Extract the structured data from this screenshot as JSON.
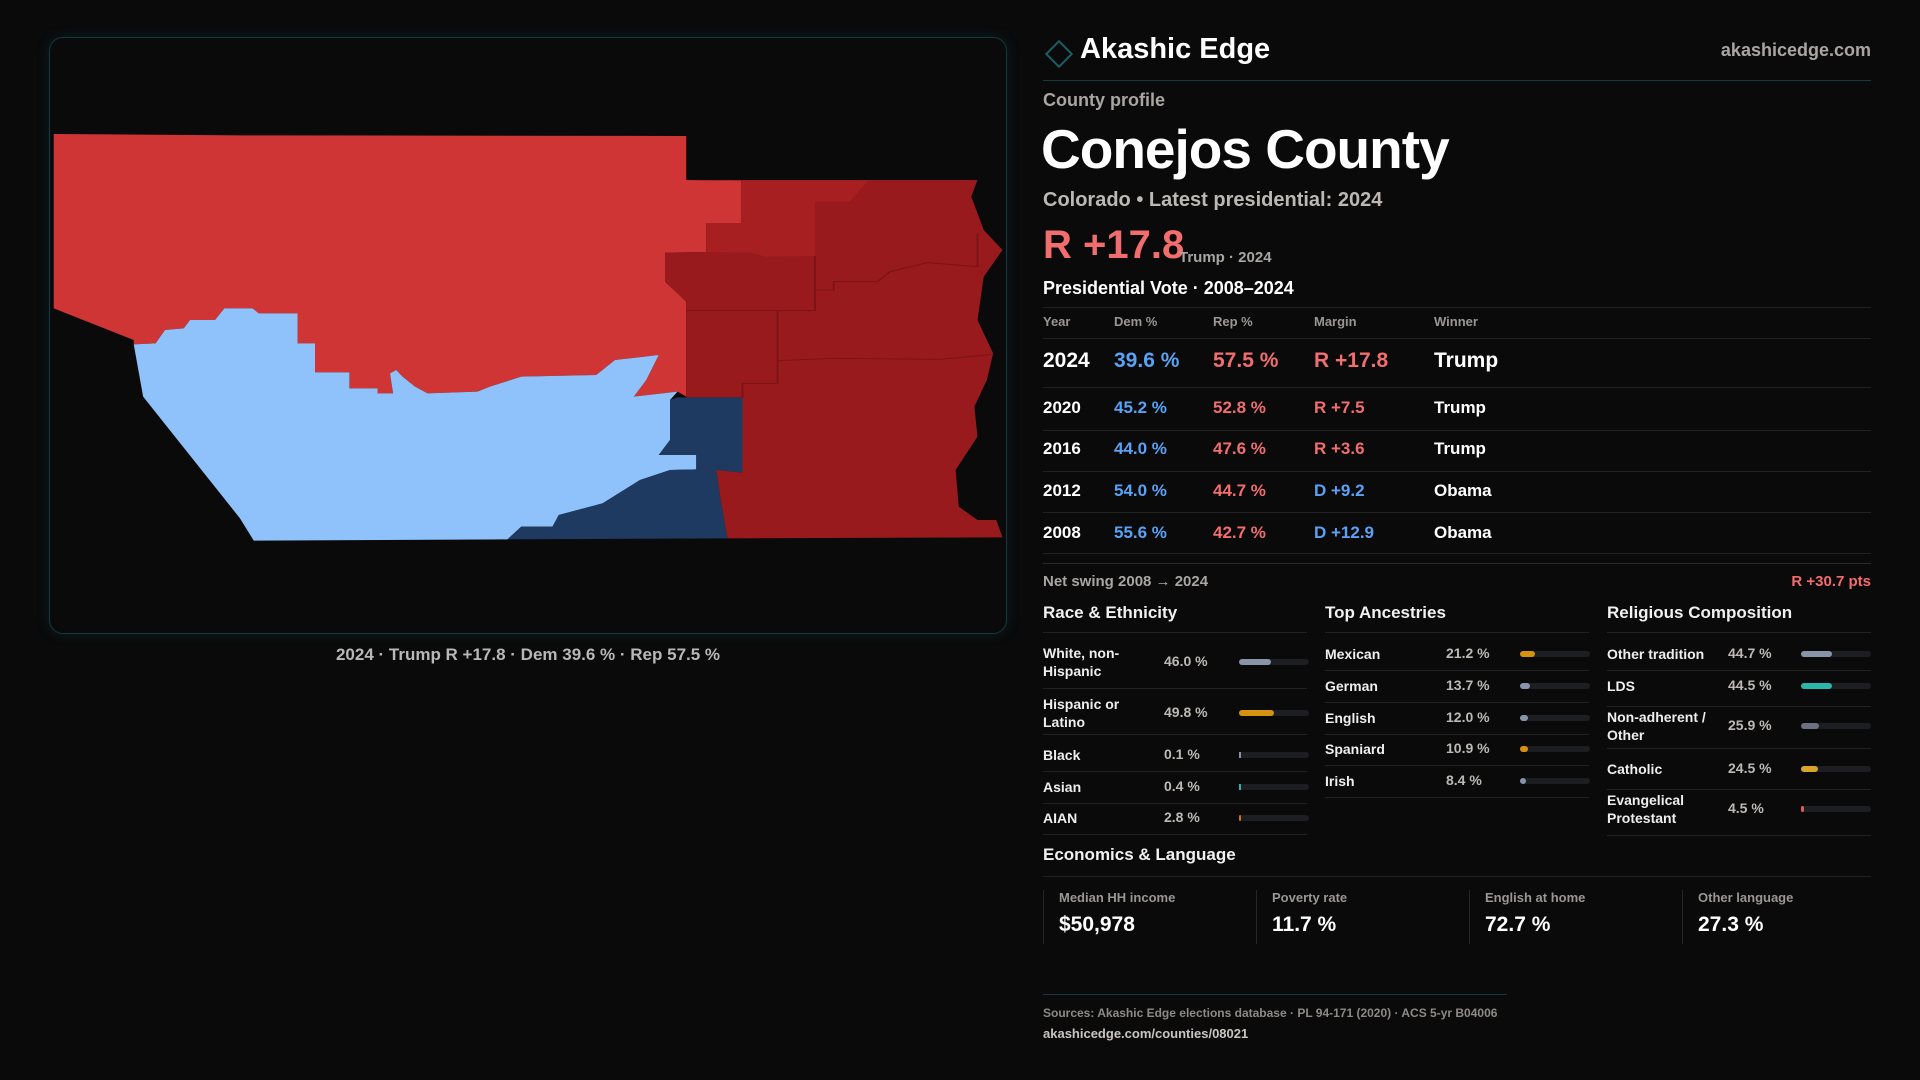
{
  "brand": {
    "name": "Akashic Edge",
    "site": "akashicedge.com"
  },
  "profile": {
    "kicker": "County profile",
    "title": "Conejos County",
    "subtitle": "Colorado • Latest presidential: 2024",
    "headline_margin": "R +17.8",
    "headline_note": "Trump · 2024"
  },
  "map": {
    "caption": "2024 · Trump R +17.8 · Dem 39.6 % · Rep 57.5 %",
    "colors": {
      "rep_light": "#cf3535",
      "rep_dark": "#981a1d",
      "rep_mid": "#a81f22",
      "dem_light": "#8fc2fb",
      "dem_dark": "#1f3a60"
    }
  },
  "votes": {
    "title": "Presidential Vote · 2008–2024",
    "headers": [
      "Year",
      "Dem %",
      "Rep %",
      "Margin",
      "Winner"
    ],
    "rows": [
      {
        "year": "2024",
        "dem": "39.6 %",
        "rep": "57.5 %",
        "margin": "R +17.8",
        "party": "R",
        "winner": "Trump"
      },
      {
        "year": "2020",
        "dem": "45.2 %",
        "rep": "52.8 %",
        "margin": "R +7.5",
        "party": "R",
        "winner": "Trump"
      },
      {
        "year": "2016",
        "dem": "44.0 %",
        "rep": "47.6 %",
        "margin": "R +3.6",
        "party": "R",
        "winner": "Trump"
      },
      {
        "year": "2012",
        "dem": "54.0 %",
        "rep": "44.7 %",
        "margin": "D +9.2",
        "party": "D",
        "winner": "Obama"
      },
      {
        "year": "2008",
        "dem": "55.6 %",
        "rep": "42.7 %",
        "margin": "D +12.9",
        "party": "D",
        "winner": "Obama"
      }
    ],
    "swing_label": "Net swing 2008 → 2024",
    "swing_value": "R +30.7 pts"
  },
  "race": {
    "title": "Race & Ethnicity",
    "items": [
      {
        "label": "White, non-Hispanic",
        "value": "46.0 %",
        "pct": 46.0,
        "color": "#8a94a8"
      },
      {
        "label": "Hispanic or Latino",
        "value": "49.8 %",
        "pct": 49.8,
        "color": "#d4920f"
      },
      {
        "label": "Black",
        "value": "0.1 %",
        "pct": 0.1,
        "color": "#8a94a8"
      },
      {
        "label": "Asian",
        "value": "0.4 %",
        "pct": 0.4,
        "color": "#2ab7a9"
      },
      {
        "label": "AIAN",
        "value": "2.8 %",
        "pct": 2.8,
        "color": "#d4700f"
      }
    ]
  },
  "ancestry": {
    "title": "Top Ancestries",
    "items": [
      {
        "label": "Mexican",
        "value": "21.2 %",
        "pct": 21.2,
        "color": "#d4920f"
      },
      {
        "label": "German",
        "value": "13.7 %",
        "pct": 13.7,
        "color": "#8a94a8"
      },
      {
        "label": "English",
        "value": "12.0 %",
        "pct": 12.0,
        "color": "#8a94a8"
      },
      {
        "label": "Spaniard",
        "value": "10.9 %",
        "pct": 10.9,
        "color": "#d4920f"
      },
      {
        "label": "Irish",
        "value": "8.4 %",
        "pct": 8.4,
        "color": "#8a94a8"
      }
    ]
  },
  "religion": {
    "title": "Religious Composition",
    "items": [
      {
        "label": "Other tradition",
        "value": "44.7 %",
        "pct": 44.7,
        "color": "#8a94a8"
      },
      {
        "label": "LDS",
        "value": "44.5 %",
        "pct": 44.5,
        "color": "#2ab7a9"
      },
      {
        "label": "Non-adherent / Other",
        "value": "25.9 %",
        "pct": 25.9,
        "color": "#6b7180"
      },
      {
        "label": "Catholic",
        "value": "24.5 %",
        "pct": 24.5,
        "color": "#d8a62a"
      },
      {
        "label": "Evangelical Protestant",
        "value": "4.5 %",
        "pct": 4.5,
        "color": "#e05a5a"
      }
    ]
  },
  "economics": {
    "title": "Economics & Language",
    "stats": [
      {
        "label": "Median HH income",
        "value": "$50,978"
      },
      {
        "label": "Poverty rate",
        "value": "11.7 %"
      },
      {
        "label": "English at home",
        "value": "72.7 %"
      },
      {
        "label": "Other language",
        "value": "27.3 %"
      }
    ]
  },
  "footer": {
    "sources": "Sources: Akashic Edge elections database · PL 94-171 (2020) · ACS 5-yr B04006",
    "url": "akashicedge.com/counties/08021"
  }
}
